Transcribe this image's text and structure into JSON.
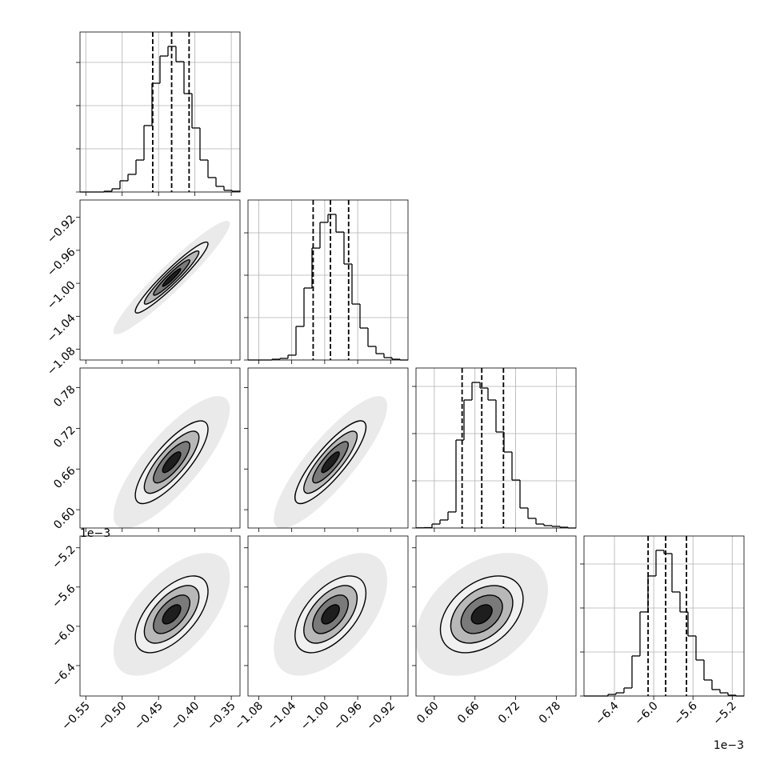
{
  "chart_data": {
    "type": "corner",
    "contour_levels": [
      0.5,
      1,
      1.5,
      2
    ],
    "parameters": [
      {
        "xlim": [
          -0.558,
          -0.338
        ],
        "ticks": [
          {
            "value": -0.55,
            "label": "−0.55"
          },
          {
            "value": -0.5,
            "label": "−0.50"
          },
          {
            "value": -0.45,
            "label": "−0.45"
          },
          {
            "value": -0.4,
            "label": "−0.40"
          },
          {
            "value": -0.35,
            "label": "−0.35"
          }
        ],
        "quantiles": [
          -0.458,
          -0.432,
          -0.408
        ],
        "histogram": {
          "bins": [
            -0.558,
            -0.547,
            -0.536,
            -0.525,
            -0.514,
            -0.503,
            -0.492,
            -0.481,
            -0.47,
            -0.459,
            -0.448,
            -0.437,
            -0.426,
            -0.415,
            -0.404,
            -0.393,
            -0.382,
            -0.371,
            -0.36,
            -0.349,
            -0.338
          ],
          "counts": [
            0,
            0,
            0,
            9,
            37,
            130,
            204,
            370,
            769,
            1259,
            1574,
            1685,
            1509,
            1139,
            741,
            370,
            167,
            65,
            19,
            9
          ],
          "ylim": [
            0,
            1852
          ],
          "yticks": [
            0,
            500,
            1000,
            1500
          ]
        }
      },
      {
        "xlim": [
          -1.093,
          -0.899
        ],
        "ticks": [
          {
            "value": -1.08,
            "label": "−1.08"
          },
          {
            "value": -1.04,
            "label": "−1.04"
          },
          {
            "value": -1.0,
            "label": "−1.00"
          },
          {
            "value": -0.96,
            "label": "−0.96"
          },
          {
            "value": -0.92,
            "label": "−0.92"
          }
        ],
        "quantiles": [
          -1.014,
          -0.993,
          -0.971
        ],
        "histogram": {
          "bins": [
            -1.093,
            -1.0833,
            -1.0736,
            -1.0639,
            -1.0542,
            -1.0445,
            -1.0348,
            -1.0251,
            -1.0154,
            -1.0057,
            -0.996,
            -0.9863,
            -0.9766,
            -0.9669,
            -0.9572,
            -0.9475,
            -0.9378,
            -0.9281,
            -0.9184,
            -0.9087,
            -0.899
          ],
          "counts": [
            0,
            0,
            0,
            9,
            19,
            57,
            396,
            849,
            1320,
            1623,
            1717,
            1509,
            1132,
            660,
            377,
            160,
            75,
            28,
            9,
            0
          ],
          "ylim": [
            0,
            1887
          ],
          "yticks": [
            0,
            500,
            1000,
            1500
          ]
        }
      },
      {
        "xlim": [
          0.573,
          0.809
        ],
        "ticks": [
          {
            "value": 0.6,
            "label": "0.60"
          },
          0.66,
          0.72,
          0.78
        ],
        "quantiles": [
          0.641,
          0.67,
          0.702
        ],
        "histogram": {
          "bins": [
            0.573,
            0.5848,
            0.5966,
            0.6084,
            0.6202,
            0.632,
            0.6438,
            0.6556,
            0.6674,
            0.6792,
            0.691,
            0.7028,
            0.7146,
            0.7264,
            0.7382,
            0.75,
            0.7618,
            0.7736,
            0.7854,
            0.7972,
            0.809
          ],
          "counts": [
            2,
            4,
            42,
            85,
            170,
            932,
            1356,
            1542,
            1483,
            1356,
            1017,
            805,
            508,
            212,
            102,
            42,
            25,
            17,
            8,
            0
          ],
          "ylim": [
            0,
            1695
          ],
          "yticks": [
            0,
            500,
            1000,
            1500
          ]
        }
      },
      {
        "xlim": [
          -0.00671,
          -0.00508
        ],
        "ticks": [
          {
            "value": -0.0064,
            "label": "−6.4"
          },
          {
            "value": -0.006,
            "label": "−6.0"
          },
          {
            "value": -0.0056,
            "label": "−5.6"
          },
          {
            "value": -0.0052,
            "label": "−5.2"
          }
        ],
        "offset_label": "1e−3",
        "quantiles": [
          -0.006057,
          -0.005878,
          -0.005666
        ],
        "histogram": {
          "bins": [
            -0.00671,
            -0.0066285,
            -0.006547,
            -0.0064655,
            -0.006384,
            -0.0063025,
            -0.006221,
            -0.0061395,
            -0.006058,
            -0.0059765,
            -0.005895,
            -0.0058135,
            -0.005732,
            -0.0056505,
            -0.005569,
            -0.0054875,
            -0.005406,
            -0.0053245,
            -0.005243,
            -0.0051615,
            -0.00508
          ],
          "counts": [
            0,
            0,
            0,
            18,
            36,
            91,
            455,
            955,
            1364,
            1655,
            1618,
            1182,
            955,
            682,
            409,
            182,
            73,
            36,
            9,
            0
          ],
          "ylim": [
            0,
            1818
          ],
          "yticks": [
            0,
            500,
            1000,
            1500
          ]
        }
      }
    ],
    "panels": [
      {
        "x": 0,
        "y": 1,
        "correlation": 0.95
      },
      {
        "x": 0,
        "y": 2,
        "correlation": 0.8
      },
      {
        "x": 1,
        "y": 2,
        "correlation": 0.85
      },
      {
        "x": 0,
        "y": 3,
        "correlation": 0.6
      },
      {
        "x": 1,
        "y": 3,
        "correlation": 0.55
      },
      {
        "x": 2,
        "y": 3,
        "correlation": 0.4
      }
    ]
  }
}
